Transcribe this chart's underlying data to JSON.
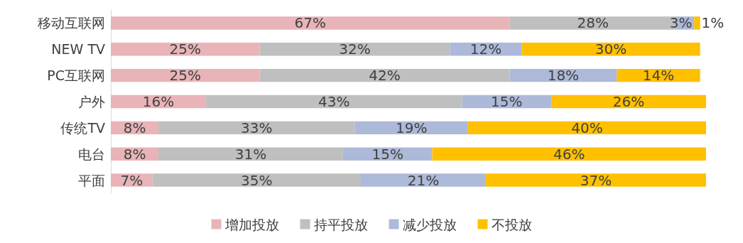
{
  "chart_data": {
    "type": "bar",
    "orientation": "horizontal",
    "stacked": true,
    "legend": "bottom",
    "categories": [
      "移动互联网",
      "NEW TV",
      "PC互联网",
      "户外",
      "传统TV",
      "电台",
      "平面"
    ],
    "series": [
      {
        "name": "增加投放",
        "color": "#e8b4b8",
        "values": [
          67,
          25,
          25,
          16,
          8,
          8,
          7
        ],
        "value_labels": [
          "67%",
          "25%",
          "25%",
          "16%",
          "8%",
          "8%",
          "7%"
        ]
      },
      {
        "name": "持平投放",
        "color": "#bfbfbf",
        "values": [
          28,
          32,
          42,
          43,
          33,
          31,
          35
        ],
        "value_labels": [
          "28%",
          "32%",
          "42%",
          "43%",
          "33%",
          "31%",
          "35%"
        ]
      },
      {
        "name": "减少投放",
        "color": "#adb9d8",
        "values": [
          3,
          12,
          18,
          15,
          19,
          15,
          21
        ],
        "value_labels": [
          "3%",
          "12%",
          "18%",
          "15%",
          "19%",
          "15%",
          "21%"
        ]
      },
      {
        "name": "不投放",
        "color": "#ffc000",
        "values": [
          1,
          30,
          14,
          26,
          40,
          46,
          37
        ],
        "value_labels": [
          "1%",
          "30%",
          "14%",
          "26%",
          "40%",
          "46%",
          "37%"
        ]
      }
    ]
  }
}
